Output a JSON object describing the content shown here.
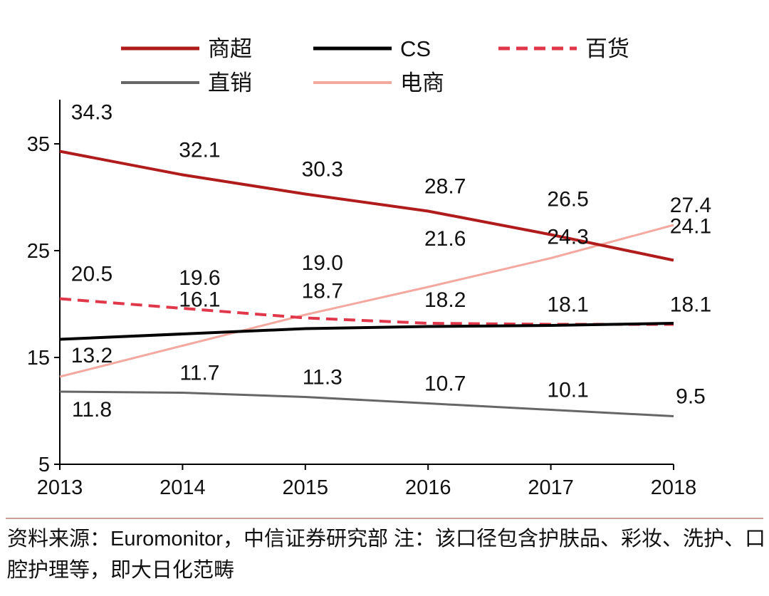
{
  "chart_data": {
    "type": "line",
    "x": [
      "2013",
      "2014",
      "2015",
      "2016",
      "2017",
      "2018"
    ],
    "ylim": [
      5,
      36
    ],
    "yticks": [
      "5",
      "15",
      "25",
      "35"
    ],
    "ytick_values": [
      5,
      15,
      25,
      35
    ],
    "xlabel": "",
    "ylabel": "",
    "legend_position": "top",
    "series": [
      {
        "name": "商超",
        "color": "#b01c1c",
        "style": "solid",
        "width": 4,
        "values": [
          34.3,
          32.1,
          30.3,
          28.7,
          26.5,
          24.1
        ],
        "labels": [
          "34.3",
          "32.1",
          "30.3",
          "28.7",
          "26.5",
          "24.1"
        ]
      },
      {
        "name": "CS",
        "color": "#000000",
        "style": "solid",
        "width": 4,
        "values": [
          16.7,
          17.2,
          17.7,
          17.9,
          18.0,
          18.2
        ],
        "labels": []
      },
      {
        "name": "百货",
        "color": "#e0384a",
        "style": "dashed",
        "width": 4,
        "values": [
          20.5,
          19.6,
          18.7,
          18.2,
          18.1,
          18.1
        ],
        "labels": [
          "20.5",
          "19.6",
          "18.7",
          "18.2",
          "18.1",
          "18.1"
        ]
      },
      {
        "name": "直销",
        "color": "#666666",
        "style": "solid",
        "width": 3,
        "values": [
          11.8,
          11.7,
          11.3,
          10.7,
          10.1,
          9.5
        ],
        "labels": [
          "11.8",
          "11.7",
          "11.3",
          "10.7",
          "10.1",
          "9.5"
        ]
      },
      {
        "name": "电商",
        "color": "#f4a9a0",
        "style": "solid",
        "width": 3,
        "values": [
          13.2,
          16.1,
          19.0,
          21.6,
          24.3,
          27.4
        ],
        "labels": [
          "13.2",
          "16.1",
          "19.0",
          "21.6",
          "24.3",
          "27.4"
        ]
      }
    ]
  },
  "source_note": "资料来源：Euromonitor，中信证券研究部 注：该口径包含护肤品、彩妆、洗护、口腔护理等，即大日化范畴"
}
